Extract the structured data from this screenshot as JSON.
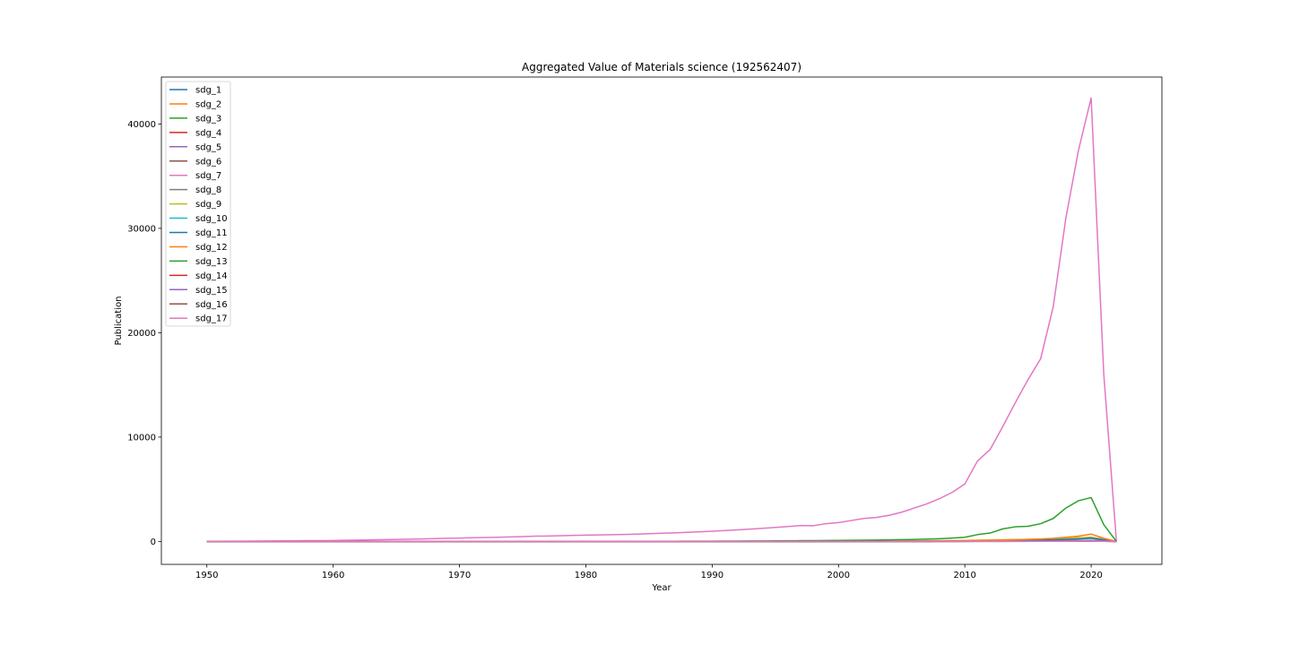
{
  "chart_data": {
    "type": "line",
    "title": "Aggregated Value of Materials science (192562407)",
    "xlabel": "Year",
    "ylabel": "Publication",
    "xlim": [
      1946.4,
      2025.6
    ],
    "ylim": [
      -2200,
      44500
    ],
    "xticks": [
      1950,
      1960,
      1970,
      1980,
      1990,
      2000,
      2010,
      2020
    ],
    "yticks": [
      0,
      10000,
      20000,
      30000,
      40000
    ],
    "grid": false,
    "legend_position": "top-left",
    "x": [
      1950,
      1951,
      1952,
      1953,
      1954,
      1955,
      1956,
      1957,
      1958,
      1959,
      1960,
      1961,
      1962,
      1963,
      1964,
      1965,
      1966,
      1967,
      1968,
      1969,
      1970,
      1971,
      1972,
      1973,
      1974,
      1975,
      1976,
      1977,
      1978,
      1979,
      1980,
      1981,
      1982,
      1983,
      1984,
      1985,
      1986,
      1987,
      1988,
      1989,
      1990,
      1991,
      1992,
      1993,
      1994,
      1995,
      1996,
      1997,
      1998,
      1999,
      2000,
      2001,
      2002,
      2003,
      2004,
      2005,
      2006,
      2007,
      2008,
      2009,
      2010,
      2011,
      2012,
      2013,
      2014,
      2015,
      2016,
      2017,
      2018,
      2019,
      2020,
      2021,
      2022
    ],
    "series": [
      {
        "name": "sdg_1",
        "color": "#1f77b4",
        "values": [
          0,
          0,
          0,
          0,
          0,
          0,
          0,
          0,
          0,
          0,
          0,
          0,
          0,
          0,
          0,
          0,
          0,
          0,
          0,
          0,
          0,
          0,
          0,
          0,
          0,
          0,
          0,
          0,
          0,
          0,
          0,
          0,
          0,
          0,
          0,
          0,
          0,
          0,
          0,
          0,
          0,
          0,
          0,
          0,
          0,
          0,
          0,
          0,
          0,
          0,
          0,
          0,
          0,
          0,
          0,
          0,
          0,
          0,
          5,
          5,
          5,
          10,
          10,
          15,
          20,
          20,
          30,
          40,
          60,
          80,
          100,
          50,
          0
        ]
      },
      {
        "name": "sdg_2",
        "color": "#ff7f0e",
        "values": [
          0,
          0,
          0,
          0,
          0,
          0,
          0,
          0,
          0,
          0,
          0,
          0,
          0,
          0,
          0,
          0,
          0,
          0,
          0,
          0,
          0,
          0,
          0,
          0,
          0,
          0,
          0,
          0,
          0,
          0,
          0,
          0,
          0,
          0,
          0,
          0,
          0,
          0,
          0,
          0,
          0,
          0,
          0,
          0,
          0,
          0,
          0,
          0,
          0,
          0,
          0,
          0,
          5,
          5,
          5,
          10,
          10,
          10,
          15,
          20,
          30,
          40,
          50,
          60,
          80,
          100,
          130,
          170,
          220,
          280,
          350,
          150,
          0
        ]
      },
      {
        "name": "sdg_3",
        "color": "#2ca02c",
        "values": [
          0,
          0,
          0,
          0,
          0,
          0,
          0,
          0,
          0,
          0,
          0,
          0,
          0,
          0,
          0,
          0,
          0,
          0,
          0,
          0,
          0,
          0,
          0,
          0,
          0,
          0,
          0,
          0,
          0,
          0,
          0,
          0,
          0,
          0,
          0,
          0,
          0,
          0,
          0,
          0,
          0,
          0,
          0,
          0,
          0,
          0,
          0,
          0,
          0,
          0,
          0,
          0,
          5,
          5,
          10,
          10,
          15,
          20,
          25,
          30,
          40,
          50,
          60,
          80,
          100,
          120,
          150,
          200,
          260,
          330,
          400,
          200,
          0
        ]
      },
      {
        "name": "sdg_4",
        "color": "#d62728",
        "values": [
          0,
          0,
          0,
          0,
          0,
          0,
          0,
          0,
          0,
          0,
          0,
          0,
          0,
          0,
          0,
          0,
          0,
          0,
          0,
          0,
          0,
          0,
          0,
          0,
          0,
          0,
          0,
          0,
          0,
          0,
          0,
          0,
          0,
          0,
          0,
          0,
          0,
          0,
          0,
          0,
          0,
          0,
          0,
          0,
          0,
          0,
          0,
          0,
          0,
          0,
          0,
          0,
          0,
          0,
          0,
          0,
          0,
          0,
          0,
          0,
          5,
          5,
          5,
          5,
          10,
          10,
          10,
          15,
          20,
          25,
          30,
          15,
          0
        ]
      },
      {
        "name": "sdg_5",
        "color": "#9467bd",
        "values": [
          0,
          0,
          0,
          0,
          0,
          0,
          0,
          0,
          0,
          0,
          0,
          0,
          0,
          0,
          0,
          0,
          0,
          0,
          0,
          0,
          0,
          0,
          0,
          0,
          0,
          0,
          0,
          0,
          0,
          0,
          0,
          0,
          0,
          0,
          0,
          0,
          0,
          0,
          0,
          0,
          0,
          0,
          0,
          0,
          0,
          0,
          0,
          0,
          0,
          0,
          0,
          0,
          0,
          0,
          0,
          0,
          0,
          0,
          0,
          0,
          0,
          0,
          0,
          0,
          0,
          5,
          5,
          5,
          5,
          10,
          10,
          5,
          0
        ]
      },
      {
        "name": "sdg_6",
        "color": "#8c564b",
        "values": [
          0,
          0,
          0,
          0,
          0,
          0,
          0,
          0,
          0,
          0,
          0,
          0,
          0,
          0,
          0,
          0,
          0,
          0,
          0,
          0,
          0,
          0,
          0,
          0,
          0,
          0,
          0,
          0,
          0,
          0,
          0,
          0,
          0,
          0,
          0,
          0,
          0,
          0,
          0,
          0,
          0,
          0,
          0,
          0,
          0,
          0,
          0,
          0,
          0,
          5,
          5,
          5,
          10,
          10,
          15,
          20,
          25,
          30,
          40,
          50,
          60,
          80,
          100,
          120,
          140,
          160,
          190,
          230,
          280,
          330,
          380,
          180,
          0
        ]
      },
      {
        "name": "sdg_7",
        "color": "#e377c2",
        "values": [
          10,
          15,
          20,
          25,
          30,
          40,
          50,
          60,
          70,
          80,
          90,
          110,
          130,
          150,
          170,
          190,
          210,
          240,
          270,
          300,
          320,
          350,
          380,
          400,
          430,
          460,
          500,
          520,
          550,
          580,
          600,
          620,
          640,
          660,
          700,
          740,
          780,
          820,
          870,
          920,
          980,
          1040,
          1100,
          1180,
          1260,
          1340,
          1430,
          1520,
          1500,
          1700,
          1800,
          2000,
          2200,
          2300,
          2500,
          2800,
          3200,
          3600,
          4100,
          4700,
          5500,
          7700,
          8800,
          11000,
          13300,
          15500,
          17500,
          22500,
          31000,
          37500,
          42500,
          16000,
          0
        ]
      },
      {
        "name": "sdg_8",
        "color": "#7f7f7f",
        "values": [
          0,
          0,
          0,
          0,
          0,
          0,
          0,
          0,
          0,
          0,
          0,
          0,
          0,
          0,
          0,
          0,
          0,
          0,
          0,
          0,
          0,
          0,
          0,
          0,
          0,
          0,
          0,
          0,
          0,
          0,
          0,
          0,
          0,
          0,
          0,
          0,
          0,
          0,
          0,
          0,
          0,
          0,
          0,
          0,
          0,
          0,
          0,
          0,
          0,
          0,
          0,
          0,
          0,
          0,
          5,
          5,
          5,
          5,
          10,
          10,
          15,
          20,
          25,
          30,
          35,
          40,
          50,
          60,
          70,
          80,
          90,
          40,
          0
        ]
      },
      {
        "name": "sdg_9",
        "color": "#bcbd22",
        "values": [
          0,
          0,
          0,
          0,
          0,
          0,
          0,
          0,
          0,
          0,
          0,
          0,
          0,
          0,
          0,
          0,
          0,
          0,
          0,
          0,
          0,
          0,
          0,
          0,
          0,
          0,
          0,
          0,
          0,
          0,
          0,
          0,
          0,
          0,
          0,
          0,
          0,
          0,
          0,
          0,
          0,
          0,
          0,
          0,
          0,
          0,
          5,
          5,
          5,
          10,
          10,
          15,
          20,
          25,
          30,
          40,
          50,
          60,
          70,
          80,
          100,
          120,
          140,
          160,
          180,
          200,
          230,
          260,
          300,
          340,
          380,
          180,
          0
        ]
      },
      {
        "name": "sdg_10",
        "color": "#17becf",
        "values": [
          0,
          0,
          0,
          0,
          0,
          0,
          0,
          0,
          0,
          0,
          0,
          0,
          0,
          0,
          0,
          0,
          0,
          0,
          0,
          0,
          0,
          0,
          0,
          0,
          0,
          0,
          0,
          0,
          0,
          0,
          0,
          0,
          0,
          0,
          0,
          0,
          0,
          0,
          0,
          0,
          0,
          0,
          0,
          0,
          0,
          0,
          0,
          0,
          0,
          0,
          0,
          0,
          0,
          0,
          0,
          0,
          0,
          0,
          0,
          0,
          0,
          0,
          0,
          0,
          5,
          5,
          5,
          5,
          10,
          10,
          10,
          5,
          0
        ]
      },
      {
        "name": "sdg_11",
        "color": "#1f77b4",
        "values": [
          0,
          0,
          0,
          0,
          0,
          0,
          0,
          0,
          0,
          0,
          0,
          0,
          0,
          0,
          0,
          0,
          0,
          0,
          0,
          0,
          0,
          0,
          0,
          0,
          0,
          0,
          0,
          0,
          0,
          0,
          0,
          0,
          0,
          0,
          0,
          0,
          0,
          0,
          0,
          0,
          0,
          0,
          0,
          0,
          0,
          0,
          0,
          0,
          0,
          0,
          5,
          5,
          5,
          10,
          10,
          15,
          20,
          25,
          30,
          35,
          40,
          50,
          60,
          70,
          80,
          100,
          120,
          150,
          190,
          240,
          300,
          140,
          0
        ]
      },
      {
        "name": "sdg_12",
        "color": "#ff7f0e",
        "values": [
          0,
          0,
          0,
          0,
          0,
          0,
          0,
          0,
          0,
          0,
          0,
          0,
          0,
          0,
          0,
          0,
          0,
          0,
          0,
          0,
          0,
          0,
          0,
          0,
          0,
          0,
          0,
          0,
          0,
          0,
          0,
          0,
          0,
          0,
          0,
          0,
          0,
          0,
          0,
          0,
          0,
          0,
          0,
          0,
          0,
          0,
          0,
          0,
          0,
          5,
          5,
          10,
          10,
          15,
          20,
          25,
          30,
          40,
          50,
          60,
          70,
          90,
          110,
          130,
          160,
          190,
          230,
          300,
          400,
          500,
          700,
          300,
          0
        ]
      },
      {
        "name": "sdg_13",
        "color": "#2ca02c",
        "values": [
          0,
          0,
          0,
          0,
          0,
          0,
          0,
          0,
          0,
          0,
          0,
          0,
          0,
          0,
          0,
          0,
          0,
          0,
          0,
          0,
          0,
          0,
          0,
          0,
          0,
          0,
          0,
          0,
          0,
          5,
          5,
          5,
          5,
          10,
          10,
          10,
          15,
          15,
          20,
          20,
          25,
          30,
          35,
          40,
          45,
          50,
          60,
          70,
          80,
          90,
          100,
          110,
          120,
          130,
          150,
          170,
          190,
          220,
          260,
          320,
          400,
          650,
          800,
          1200,
          1400,
          1450,
          1700,
          2200,
          3200,
          3900,
          4200,
          1600,
          0
        ]
      },
      {
        "name": "sdg_14",
        "color": "#d62728",
        "values": [
          0,
          0,
          0,
          0,
          0,
          0,
          0,
          0,
          0,
          0,
          0,
          0,
          0,
          0,
          0,
          0,
          0,
          0,
          0,
          0,
          0,
          0,
          0,
          0,
          0,
          0,
          0,
          0,
          0,
          0,
          0,
          0,
          0,
          0,
          0,
          0,
          0,
          0,
          0,
          0,
          0,
          0,
          0,
          0,
          0,
          0,
          0,
          0,
          0,
          0,
          0,
          0,
          0,
          0,
          0,
          0,
          0,
          0,
          5,
          5,
          5,
          5,
          10,
          10,
          10,
          15,
          15,
          20,
          25,
          30,
          35,
          15,
          0
        ]
      },
      {
        "name": "sdg_15",
        "color": "#9467bd",
        "values": [
          0,
          0,
          0,
          0,
          0,
          0,
          0,
          0,
          0,
          0,
          0,
          0,
          0,
          0,
          0,
          0,
          0,
          0,
          0,
          0,
          0,
          0,
          0,
          0,
          0,
          0,
          0,
          0,
          0,
          0,
          0,
          0,
          0,
          0,
          0,
          0,
          0,
          0,
          0,
          0,
          0,
          0,
          0,
          0,
          0,
          0,
          0,
          0,
          0,
          0,
          0,
          0,
          0,
          0,
          0,
          0,
          0,
          5,
          5,
          5,
          5,
          10,
          10,
          10,
          15,
          15,
          20,
          25,
          30,
          40,
          50,
          20,
          0
        ]
      },
      {
        "name": "sdg_16",
        "color": "#8c564b",
        "values": [
          0,
          0,
          0,
          0,
          0,
          0,
          0,
          0,
          0,
          0,
          0,
          0,
          0,
          0,
          0,
          0,
          0,
          0,
          0,
          0,
          0,
          0,
          0,
          0,
          0,
          0,
          0,
          0,
          0,
          0,
          0,
          0,
          0,
          0,
          0,
          0,
          0,
          0,
          0,
          0,
          0,
          0,
          0,
          0,
          0,
          0,
          0,
          0,
          0,
          0,
          0,
          0,
          0,
          0,
          0,
          0,
          0,
          0,
          0,
          0,
          0,
          5,
          5,
          5,
          5,
          5,
          10,
          10,
          10,
          15,
          15,
          5,
          0
        ]
      },
      {
        "name": "sdg_17",
        "color": "#e377c2",
        "values": [
          0,
          0,
          0,
          0,
          0,
          0,
          0,
          0,
          0,
          0,
          0,
          0,
          0,
          0,
          0,
          0,
          0,
          0,
          0,
          0,
          0,
          0,
          0,
          0,
          0,
          0,
          0,
          0,
          0,
          0,
          0,
          0,
          0,
          0,
          0,
          0,
          0,
          0,
          0,
          0,
          0,
          0,
          0,
          0,
          0,
          0,
          0,
          0,
          0,
          0,
          0,
          0,
          0,
          0,
          0,
          0,
          0,
          0,
          0,
          0,
          5,
          5,
          5,
          5,
          10,
          10,
          10,
          15,
          15,
          20,
          25,
          10,
          0
        ]
      }
    ]
  }
}
